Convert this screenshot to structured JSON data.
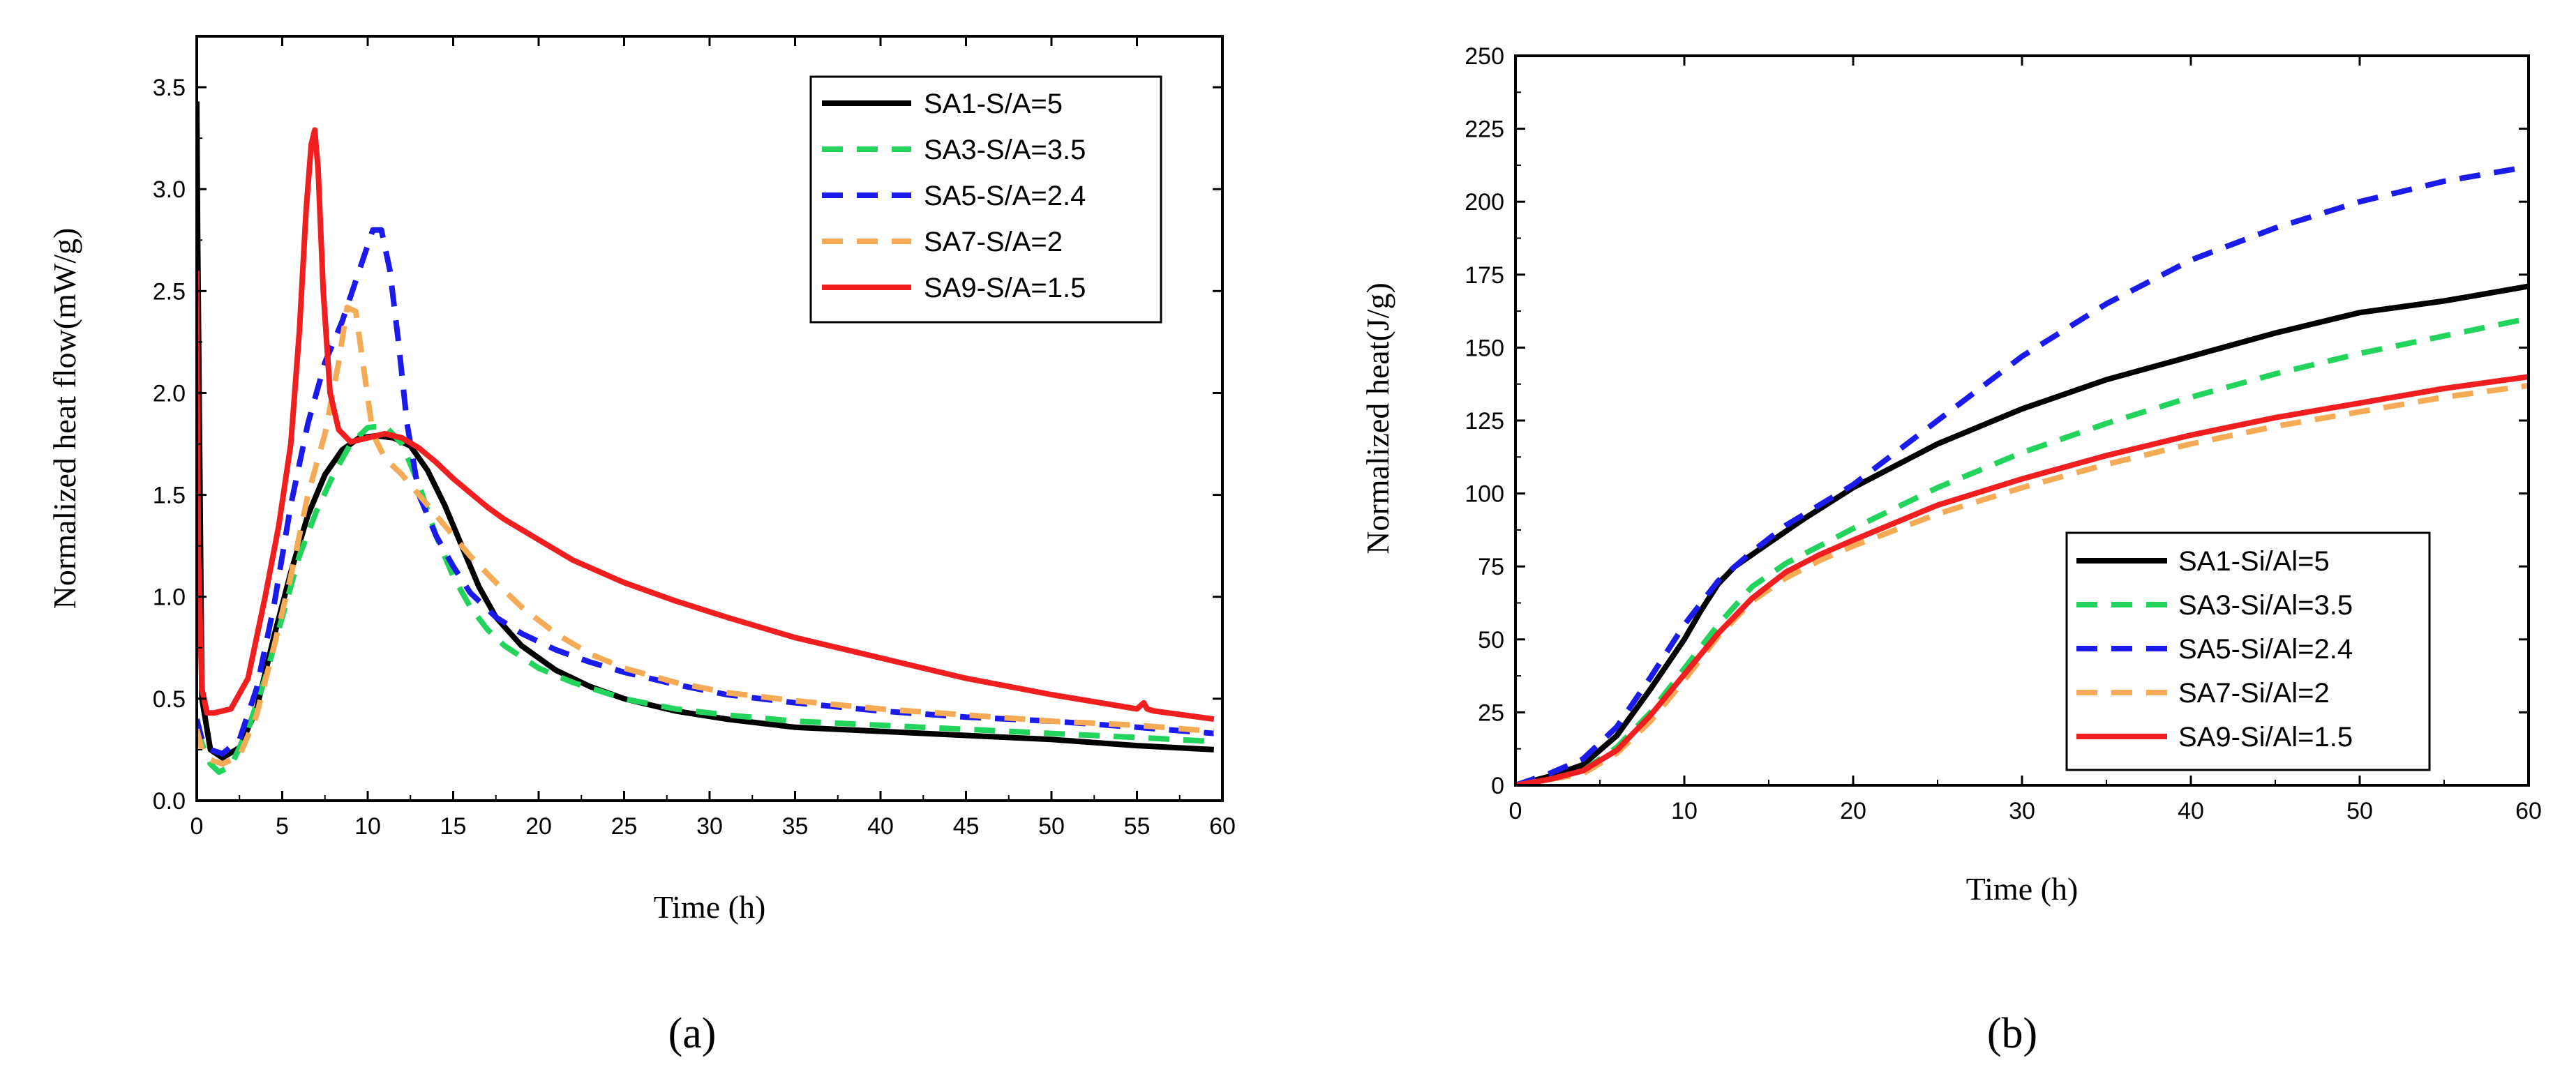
{
  "chart_data": [
    {
      "type": "line",
      "panel_label": "(a)",
      "xlabel": "Time (h)",
      "ylabel": "Normalized heat flow(mW/g)",
      "xlim": [
        0,
        60
      ],
      "ylim": [
        0,
        3.75
      ],
      "xticks": [
        0,
        5,
        10,
        15,
        20,
        25,
        30,
        35,
        40,
        45,
        50,
        55,
        60
      ],
      "xtick_labels": [
        "0",
        "5",
        "10",
        "15",
        "20",
        "25",
        "30",
        "35",
        "40",
        "45",
        "50",
        "55",
        "60"
      ],
      "yticks": [
        0,
        0.5,
        1.0,
        1.5,
        2.0,
        2.5,
        3.0,
        3.5
      ],
      "ytick_labels": [
        "0.0",
        "0.5",
        "1.0",
        "1.5",
        "2.0",
        "2.5",
        "3.0",
        "3.5"
      ],
      "legend_position": "top-right",
      "series": [
        {
          "name": "SA1-S/A=5",
          "color": "#000000",
          "dash": "solid",
          "x": [
            0,
            0.05,
            0.3,
            0.8,
            1.5,
            2.5,
            3.5,
            4.5,
            5.5,
            6.5,
            7.5,
            8.5,
            9.5,
            10.5,
            11.5,
            12.5,
            13.5,
            14.5,
            15.5,
            16.5,
            17.5,
            19,
            21,
            23,
            25,
            28,
            31,
            35,
            40,
            45,
            50,
            55,
            59.5
          ],
          "y": [
            3.43,
            2.8,
            0.5,
            0.25,
            0.21,
            0.26,
            0.45,
            0.8,
            1.12,
            1.4,
            1.6,
            1.72,
            1.78,
            1.79,
            1.78,
            1.74,
            1.62,
            1.45,
            1.25,
            1.05,
            0.9,
            0.76,
            0.64,
            0.56,
            0.5,
            0.44,
            0.4,
            0.36,
            0.34,
            0.32,
            0.3,
            0.27,
            0.25
          ]
        },
        {
          "name": "SA3-S/A=3.5",
          "color": "#22d45c",
          "dash": "dashed",
          "x": [
            0,
            0.3,
            0.8,
            1.3,
            2,
            3,
            4,
            5,
            6,
            7,
            8,
            9,
            10,
            11,
            12,
            13,
            14,
            15,
            16,
            17,
            18,
            20,
            22,
            25,
            28,
            31,
            35,
            40,
            45,
            50,
            55,
            59.5
          ],
          "y": [
            0.35,
            0.28,
            0.18,
            0.14,
            0.17,
            0.35,
            0.6,
            0.9,
            1.2,
            1.42,
            1.6,
            1.75,
            1.83,
            1.84,
            1.75,
            1.55,
            1.3,
            1.1,
            0.95,
            0.84,
            0.76,
            0.65,
            0.58,
            0.5,
            0.45,
            0.42,
            0.39,
            0.37,
            0.35,
            0.33,
            0.31,
            0.29
          ]
        },
        {
          "name": "SA5-S/A=2.4",
          "color": "#1a1aeb",
          "dash": "dashed",
          "x": [
            0,
            0.3,
            0.8,
            1.5,
            2.5,
            3.5,
            4.5,
            5.5,
            6.5,
            7.5,
            8.5,
            9.5,
            10.3,
            10.8,
            11.3,
            11.8,
            12.3,
            13,
            14,
            15,
            16,
            17.5,
            19,
            21,
            23,
            25,
            28,
            31,
            35,
            40,
            45,
            50,
            55,
            59.5
          ],
          "y": [
            0.4,
            0.3,
            0.25,
            0.23,
            0.3,
            0.55,
            0.95,
            1.45,
            1.85,
            2.15,
            2.35,
            2.6,
            2.8,
            2.8,
            2.6,
            2.25,
            1.85,
            1.5,
            1.3,
            1.15,
            1.02,
            0.9,
            0.82,
            0.74,
            0.68,
            0.63,
            0.57,
            0.52,
            0.48,
            0.44,
            0.41,
            0.39,
            0.36,
            0.33
          ]
        },
        {
          "name": "SA7-S/A=2",
          "color": "#f5aa55",
          "dash": "dashed",
          "x": [
            0,
            0.3,
            0.8,
            1.5,
            2.5,
            3.5,
            4.5,
            5.5,
            6.5,
            7.5,
            8.3,
            8.8,
            9.3,
            9.8,
            10.3,
            11,
            12,
            13,
            14.5,
            16,
            17.5,
            19,
            21,
            23,
            25,
            28,
            31,
            35,
            40,
            45,
            50,
            55,
            59.5
          ],
          "y": [
            0.35,
            0.25,
            0.2,
            0.18,
            0.22,
            0.42,
            0.75,
            1.1,
            1.5,
            1.8,
            2.15,
            2.42,
            2.4,
            2.1,
            1.8,
            1.68,
            1.6,
            1.5,
            1.35,
            1.2,
            1.07,
            0.95,
            0.82,
            0.72,
            0.65,
            0.58,
            0.53,
            0.49,
            0.45,
            0.42,
            0.39,
            0.37,
            0.34
          ]
        },
        {
          "name": "SA9-S/A=1.5",
          "color": "#f01e1e",
          "dash": "solid",
          "x": [
            0,
            0.02,
            0.1,
            0.3,
            0.6,
            1,
            2,
            3,
            4,
            4.8,
            5.5,
            6,
            6.4,
            6.7,
            6.9,
            7.1,
            7.4,
            7.8,
            8.3,
            9,
            10,
            11,
            12,
            13,
            14,
            15,
            16,
            17,
            18,
            20,
            22,
            25,
            28,
            31,
            35,
            40,
            45,
            50,
            55,
            55.4,
            55.6,
            56,
            59.5
          ],
          "y": [
            2.6,
            2.1,
            1.2,
            0.55,
            0.43,
            0.43,
            0.45,
            0.6,
            1.0,
            1.35,
            1.75,
            2.3,
            2.9,
            3.22,
            3.29,
            3.1,
            2.5,
            2.0,
            1.82,
            1.76,
            1.78,
            1.8,
            1.78,
            1.73,
            1.66,
            1.58,
            1.51,
            1.44,
            1.38,
            1.28,
            1.18,
            1.07,
            0.98,
            0.9,
            0.8,
            0.7,
            0.6,
            0.52,
            0.45,
            0.48,
            0.45,
            0.44,
            0.4
          ]
        }
      ]
    },
    {
      "type": "line",
      "panel_label": "(b)",
      "xlabel": "Time (h)",
      "ylabel": "Normalized heat(J/g)",
      "xlim": [
        0,
        60
      ],
      "ylim": [
        0,
        250
      ],
      "xticks": [
        0,
        10,
        20,
        30,
        40,
        50,
        60
      ],
      "xtick_labels": [
        "0",
        "10",
        "20",
        "30",
        "40",
        "50",
        "60"
      ],
      "yticks": [
        0,
        25,
        50,
        75,
        100,
        125,
        150,
        175,
        200,
        225,
        250
      ],
      "ytick_labels": [
        "0",
        "25",
        "50",
        "75",
        "100",
        "125",
        "150",
        "175",
        "200",
        "225",
        "250"
      ],
      "legend_position": "bottom-right",
      "series": [
        {
          "name": "SA1-Si/Al=5",
          "color": "#000000",
          "dash": "solid",
          "x": [
            0,
            2,
            4,
            6,
            8,
            10,
            11,
            12,
            13,
            15,
            17,
            20,
            25,
            30,
            35,
            40,
            45,
            50,
            55,
            60
          ],
          "y": [
            0,
            3,
            7,
            17,
            33,
            50,
            60,
            69,
            75,
            83,
            91,
            102,
            117,
            129,
            139,
            147,
            155,
            162,
            166,
            171
          ]
        },
        {
          "name": "SA3-Si/Al=3.5",
          "color": "#22d45c",
          "dash": "dashed",
          "x": [
            0,
            2,
            4,
            6,
            8,
            10,
            12,
            14,
            16,
            18,
            20,
            25,
            30,
            35,
            40,
            45,
            50,
            55,
            60
          ],
          "y": [
            0,
            2,
            5,
            13,
            25,
            40,
            55,
            68,
            76,
            82,
            88,
            102,
            114,
            124,
            133,
            141,
            148,
            154,
            160
          ]
        },
        {
          "name": "SA5-Si/Al=2.4",
          "color": "#1a1aeb",
          "dash": "dashed",
          "x": [
            0,
            2,
            4,
            6,
            8,
            10,
            12,
            14,
            16,
            18,
            20,
            25,
            30,
            35,
            40,
            45,
            50,
            55,
            60
          ],
          "y": [
            0,
            4,
            9,
            20,
            37,
            55,
            70,
            80,
            89,
            96,
            103,
            125,
            147,
            165,
            180,
            191,
            200,
            207,
            212
          ]
        },
        {
          "name": "SA7-Si/Al=2",
          "color": "#f5aa55",
          "dash": "dashed",
          "x": [
            0,
            2,
            4,
            6,
            8,
            10,
            12,
            14,
            16,
            18,
            20,
            25,
            30,
            35,
            40,
            45,
            50,
            55,
            60
          ],
          "y": [
            0,
            2,
            4,
            11,
            22,
            36,
            51,
            63,
            71,
            77,
            82,
            93,
            102,
            110,
            117,
            123,
            128,
            133,
            137
          ]
        },
        {
          "name": "SA9-Si/Al=1.5",
          "color": "#f01e1e",
          "dash": "solid",
          "x": [
            0,
            2,
            4,
            6,
            8,
            10,
            12,
            14,
            16,
            18,
            20,
            25,
            30,
            35,
            40,
            45,
            50,
            55,
            60
          ],
          "y": [
            0,
            2,
            5,
            12,
            24,
            38,
            52,
            64,
            73,
            79,
            84,
            96,
            105,
            113,
            120,
            126,
            131,
            136,
            140
          ]
        }
      ]
    }
  ]
}
